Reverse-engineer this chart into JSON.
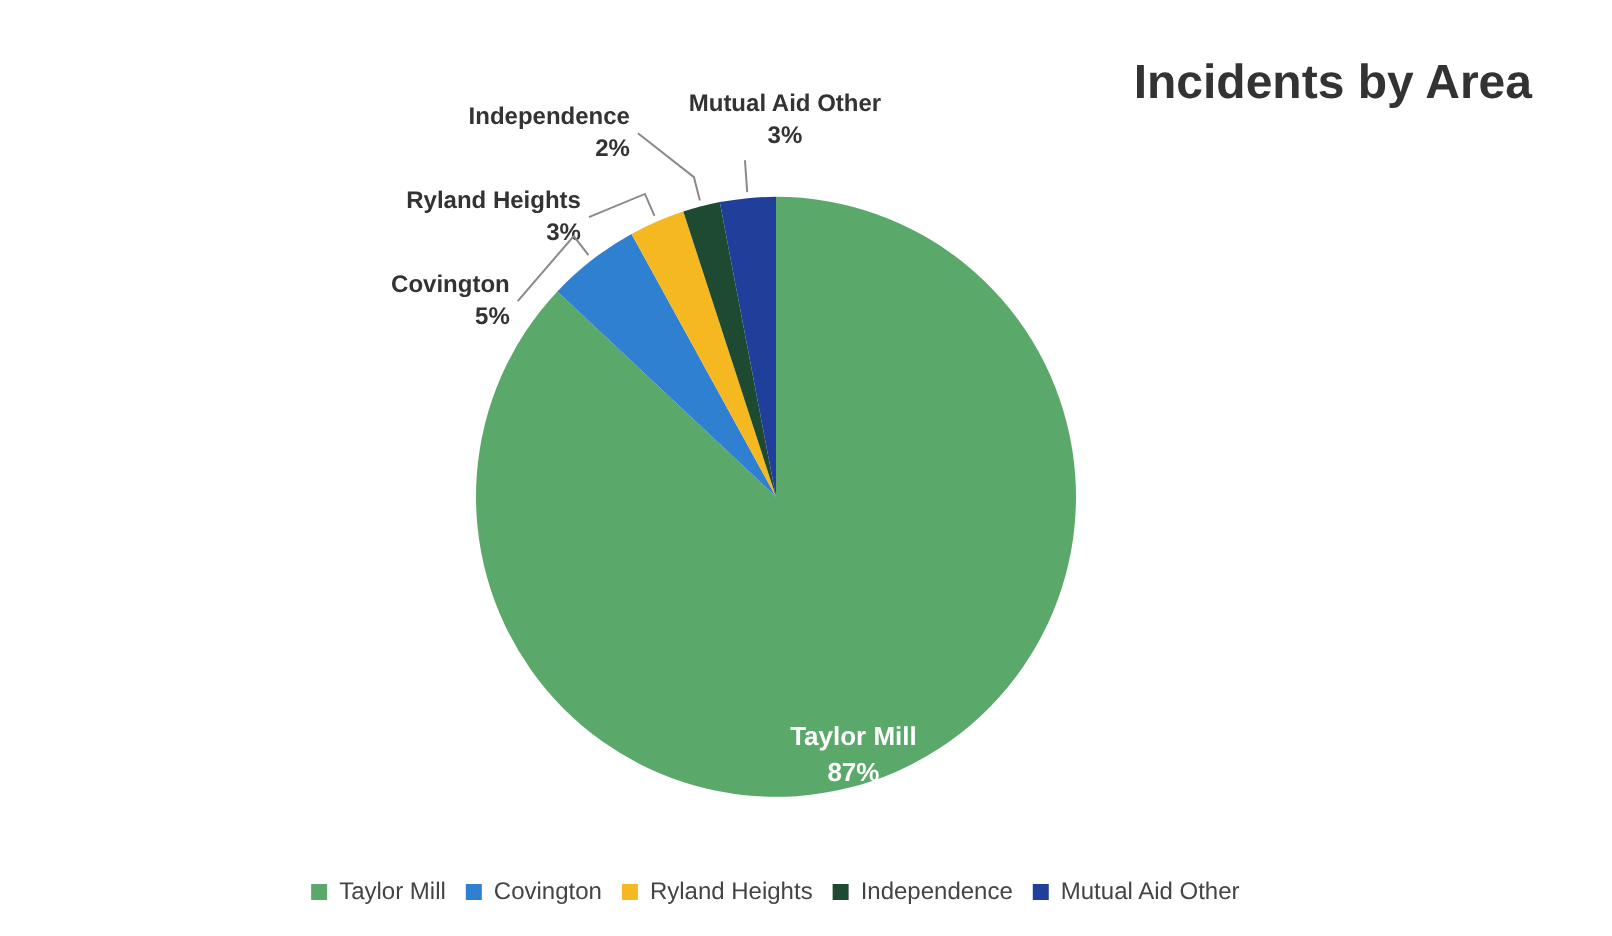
{
  "chart_data": {
    "type": "pie",
    "title": "Incidents by Area",
    "categories": [
      "Taylor Mill",
      "Covington",
      "Ryland Heights",
      "Independence",
      "Mutual Aid Other"
    ],
    "values": [
      87,
      5,
      3,
      2,
      3
    ],
    "colors": [
      "#5aa86a",
      "#2f80d0",
      "#f5b820",
      "#1f4a32",
      "#1f3f9a"
    ],
    "value_labels": [
      "87%",
      "5%",
      "3%",
      "2%",
      "3%"
    ],
    "legend": "bottom"
  }
}
